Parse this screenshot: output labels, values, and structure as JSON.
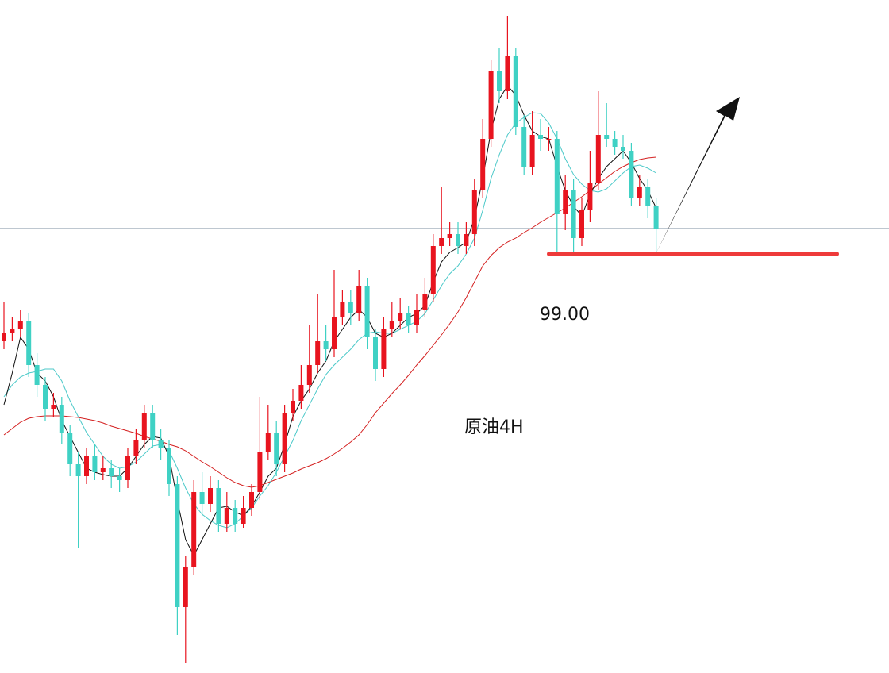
{
  "chart_data": {
    "type": "candlestick",
    "title": "原油4H",
    "ylim": [
      93.72,
      102.2
    ],
    "up_color": "#e8141f",
    "down_color": "#3fd1c4",
    "hline": 99.32,
    "support": {
      "value": 99,
      "label": "99.00",
      "color": "#ee3a3a"
    },
    "open": [
      97.9,
      98.0,
      98.05,
      98.15,
      97.6,
      97.35,
      97.05,
      97.1,
      96.75,
      96.35,
      96.2,
      96.45,
      96.25,
      96.3,
      96.2,
      96.15,
      96.45,
      96.65,
      97.0,
      96.65,
      96.55,
      96.1,
      94.55,
      95.05,
      96.0,
      95.85,
      96.05,
      95.6,
      95.8,
      95.6,
      95.8,
      96.0,
      96.5,
      96.75,
      96.35,
      97.0,
      97.15,
      97.35,
      97.6,
      97.9,
      97.8,
      98.2,
      98.4,
      98.25,
      98.6,
      97.95,
      97.55,
      98.05,
      98.15,
      98.25,
      98.1,
      98.3,
      98.5,
      99.1,
      99.2,
      99.25,
      99.1,
      99.25,
      99.8,
      100.45,
      101.3,
      101.05,
      101.5,
      100.6,
      100.1,
      100.5,
      100.45,
      100.45,
      99.5,
      99.8,
      99.2,
      99.55,
      99.9,
      100.5,
      100.45,
      100.35,
      100.3,
      99.7,
      99.85,
      99.6
    ],
    "high": [
      98.4,
      98.2,
      98.3,
      98.25,
      97.75,
      97.45,
      97.25,
      97.2,
      96.85,
      96.5,
      96.55,
      96.6,
      96.45,
      96.4,
      96.3,
      96.55,
      96.8,
      97.1,
      97.1,
      96.8,
      96.65,
      96.2,
      95.2,
      96.15,
      96.25,
      96.2,
      96.15,
      96.0,
      95.9,
      95.95,
      96.1,
      97.2,
      97.1,
      96.9,
      97.1,
      97.3,
      97.6,
      98.1,
      98.5,
      98.1,
      98.8,
      98.55,
      98.55,
      98.8,
      98.7,
      98.05,
      98.2,
      98.4,
      98.45,
      98.35,
      98.5,
      98.7,
      99.25,
      99.85,
      99.4,
      99.4,
      99.4,
      99.95,
      100.7,
      101.45,
      101.6,
      102.0,
      101.6,
      100.75,
      100.8,
      100.7,
      100.6,
      100.55,
      100.0,
      99.95,
      99.7,
      100.3,
      101.05,
      100.9,
      100.55,
      100.5,
      100.4,
      100.0,
      99.95,
      99.7
    ],
    "low": [
      97.8,
      97.9,
      97.95,
      97.45,
      97.2,
      96.9,
      96.95,
      96.6,
      96.2,
      95.3,
      96.1,
      96.15,
      96.15,
      96.05,
      96.0,
      96.05,
      96.35,
      96.55,
      96.55,
      96.4,
      95.95,
      94.2,
      93.85,
      94.95,
      95.7,
      95.75,
      95.5,
      95.5,
      95.5,
      95.55,
      95.7,
      95.9,
      96.4,
      96.2,
      96.25,
      96.9,
      97.05,
      97.25,
      97.5,
      97.65,
      97.7,
      98.1,
      98.1,
      98.15,
      97.8,
      97.4,
      97.45,
      97.95,
      98.05,
      98.0,
      98.0,
      98.2,
      98.4,
      99.0,
      99.1,
      99.0,
      99.0,
      99.1,
      99.7,
      100.35,
      100.9,
      100.95,
      100.5,
      100.0,
      100.0,
      100.3,
      100.3,
      99.0,
      99.3,
      99.0,
      99.1,
      99.4,
      99.8,
      100.35,
      100.25,
      100.2,
      99.6,
      99.6,
      99.45,
      99.0
    ],
    "close": [
      98.0,
      98.05,
      98.15,
      97.6,
      97.35,
      97.05,
      97.1,
      96.75,
      96.35,
      96.2,
      96.45,
      96.25,
      96.3,
      96.2,
      96.15,
      96.45,
      96.65,
      97.0,
      96.65,
      96.55,
      96.1,
      94.55,
      95.05,
      96.0,
      95.85,
      96.05,
      95.6,
      95.8,
      95.6,
      95.8,
      96.0,
      96.5,
      96.75,
      96.35,
      97.0,
      97.15,
      97.35,
      97.6,
      97.9,
      97.8,
      98.2,
      98.4,
      98.25,
      98.6,
      97.95,
      97.55,
      98.05,
      98.15,
      98.25,
      98.1,
      98.3,
      98.5,
      99.1,
      99.2,
      99.25,
      99.1,
      99.25,
      99.8,
      100.45,
      101.3,
      101.05,
      101.5,
      100.6,
      100.1,
      100.5,
      100.45,
      100.45,
      99.5,
      99.8,
      99.2,
      99.55,
      99.9,
      100.5,
      100.45,
      100.35,
      100.3,
      99.7,
      99.85,
      99.6,
      99.32
    ],
    "lines": [
      {
        "color": "#d42020",
        "values": [
          96.72,
          96.8,
          96.88,
          96.93,
          96.95,
          96.96,
          96.96,
          96.96,
          96.95,
          96.94,
          96.92,
          96.9,
          96.87,
          96.83,
          96.8,
          96.77,
          96.74,
          96.7,
          96.67,
          96.64,
          96.6,
          96.57,
          96.52,
          96.45,
          96.38,
          96.32,
          96.25,
          96.18,
          96.12,
          96.08,
          96.06,
          96.08,
          96.12,
          96.16,
          96.2,
          96.24,
          96.29,
          96.33,
          96.37,
          96.42,
          96.48,
          96.55,
          96.63,
          96.72,
          96.85,
          97.0,
          97.12,
          97.24,
          97.35,
          97.47,
          97.6,
          97.72,
          97.85,
          97.98,
          98.12,
          98.27,
          98.45,
          98.65,
          98.85,
          98.98,
          99.08,
          99.15,
          99.2,
          99.27,
          99.33,
          99.4,
          99.46,
          99.52,
          99.58,
          99.65,
          99.72,
          99.8,
          99.88,
          99.96,
          100.04,
          100.1,
          100.15,
          100.19,
          100.21,
          100.22
        ]
      },
      {
        "color": "#4cc9c9",
        "values": [
          97.2,
          97.35,
          97.45,
          97.5,
          97.52,
          97.55,
          97.55,
          97.4,
          97.15,
          96.95,
          96.75,
          96.6,
          96.45,
          96.35,
          96.3,
          96.32,
          96.38,
          96.48,
          96.58,
          96.6,
          96.52,
          96.3,
          96.05,
          95.85,
          95.72,
          95.64,
          95.58,
          95.55,
          95.6,
          95.7,
          95.8,
          95.95,
          96.08,
          96.25,
          96.45,
          96.65,
          96.9,
          97.1,
          97.3,
          97.48,
          97.6,
          97.7,
          97.8,
          97.92,
          98.0,
          98.02,
          98.0,
          98.0,
          98.05,
          98.1,
          98.15,
          98.25,
          98.42,
          98.6,
          98.75,
          98.85,
          99.0,
          99.2,
          99.55,
          99.95,
          100.25,
          100.5,
          100.65,
          100.72,
          100.78,
          100.77,
          100.65,
          100.45,
          100.2,
          100.0,
          99.88,
          99.8,
          99.78,
          99.82,
          99.92,
          100.02,
          100.1,
          100.12,
          100.08,
          100.02
        ]
      },
      {
        "color": "#111111",
        "values": [
          97.1,
          97.5,
          97.95,
          97.8,
          97.5,
          97.4,
          97.2,
          96.9,
          96.7,
          96.5,
          96.3,
          96.25,
          96.22,
          96.2,
          96.2,
          96.3,
          96.45,
          96.6,
          96.7,
          96.68,
          96.45,
          95.9,
          95.4,
          95.2,
          95.4,
          95.6,
          95.8,
          95.82,
          95.75,
          95.7,
          95.82,
          96.0,
          96.2,
          96.3,
          96.6,
          96.95,
          97.15,
          97.3,
          97.5,
          97.65,
          97.9,
          98.05,
          98.2,
          98.3,
          98.2,
          98.0,
          97.95,
          98.0,
          98.1,
          98.2,
          98.25,
          98.35,
          98.65,
          98.9,
          99.02,
          99.08,
          99.15,
          99.45,
          99.95,
          100.55,
          100.95,
          101.12,
          101.0,
          100.75,
          100.55,
          100.48,
          100.45,
          100.1,
          99.8,
          99.6,
          99.48,
          99.75,
          99.95,
          100.1,
          100.2,
          100.3,
          100.15,
          99.95,
          99.8,
          99.58
        ]
      }
    ]
  }
}
